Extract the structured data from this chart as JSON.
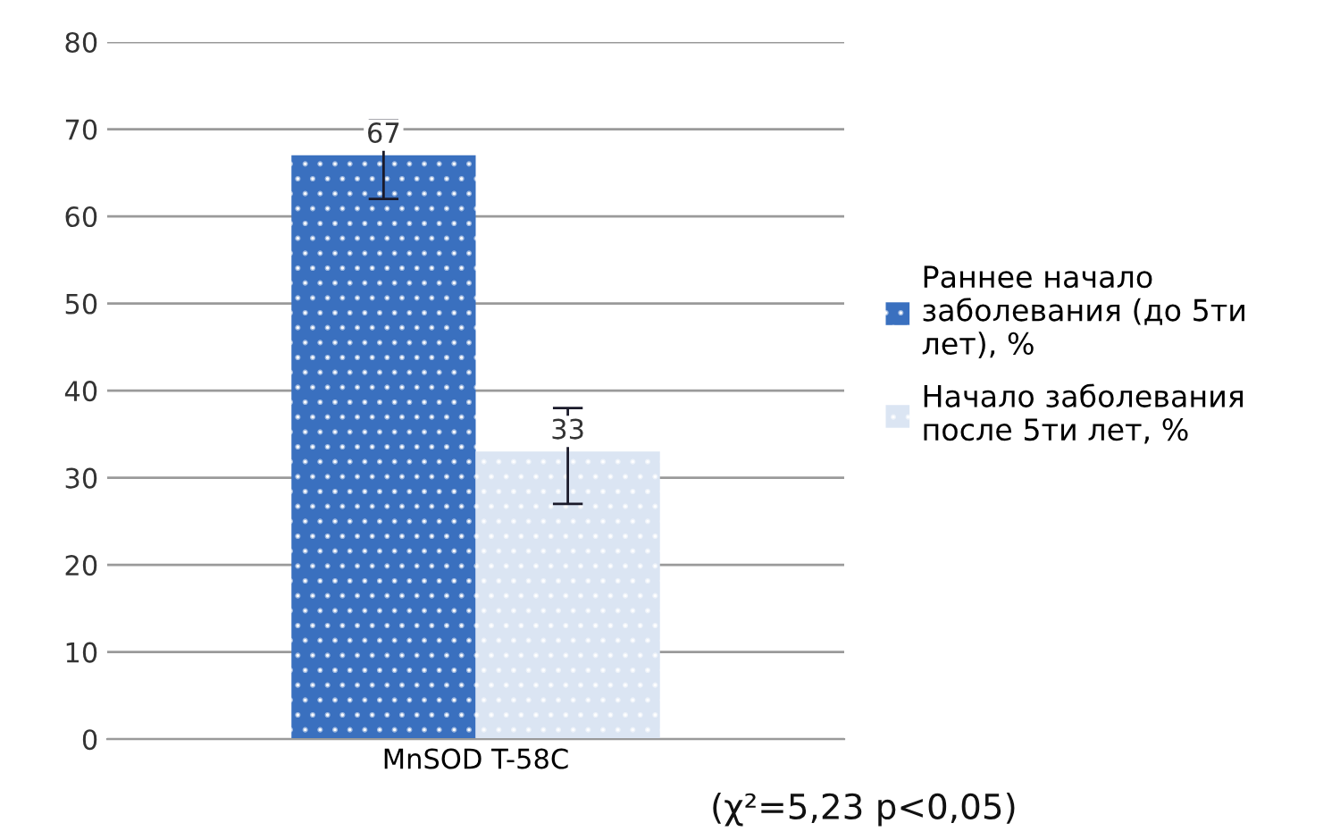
{
  "chart_data": {
    "type": "bar",
    "categories": [
      "MnSOD T-58C"
    ],
    "series": [
      {
        "name": "Раннее начало заболевания (до 5ти лет), %",
        "color": "#3a70bf",
        "values": [
          67
        ],
        "errors": [
          [
            62,
            71
          ]
        ]
      },
      {
        "name": "Начало заболевания после 5ти лет, %",
        "color": "#dbe5f3",
        "values": [
          33
        ],
        "errors": [
          [
            27,
            38
          ]
        ]
      }
    ],
    "ylim": [
      0,
      80
    ],
    "yticks": [
      0,
      10,
      20,
      30,
      40,
      50,
      60,
      70,
      80
    ],
    "grid": "y",
    "legend": "right",
    "data_labels": true,
    "annotations": [
      "(χ²=5,23 p<0,05)"
    ]
  }
}
